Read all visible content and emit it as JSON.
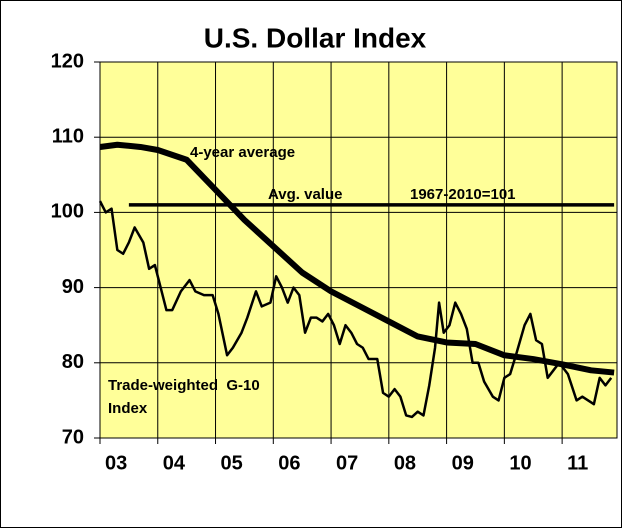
{
  "chart_data": {
    "type": "line",
    "title": "U.S. Dollar Index",
    "xlim": [
      2003,
      2011.95
    ],
    "xticks": [
      {
        "value": 2003,
        "label": "03"
      },
      {
        "value": 2004,
        "label": "04"
      },
      {
        "value": 2005,
        "label": "05"
      },
      {
        "value": 2006,
        "label": "06"
      },
      {
        "value": 2007,
        "label": "07"
      },
      {
        "value": 2008,
        "label": "08"
      },
      {
        "value": 2009,
        "label": "09"
      },
      {
        "value": 2010,
        "label": "10"
      },
      {
        "value": 2011,
        "label": "11"
      }
    ],
    "ylim": [
      70,
      120
    ],
    "yticks": [
      70,
      80,
      90,
      100,
      110,
      120
    ],
    "grid": true,
    "background": "#ffff99",
    "series": [
      {
        "color": "#000000",
        "x": [
          2003.0,
          2003.3,
          2003.7,
          2004.0,
          2004.5,
          2005.0,
          2005.5,
          2006.0,
          2006.5,
          2007.0,
          2007.5,
          2008.0,
          2008.5,
          2009.0,
          2009.5,
          2010.0,
          2010.5,
          2011.0,
          2011.5,
          2011.9
        ],
        "values": [
          108.7,
          109,
          108.7,
          108.3,
          107,
          103,
          99,
          95.5,
          92,
          89.5,
          87.5,
          85.5,
          83.5,
          82.7,
          82.5,
          81,
          80.5,
          79.8,
          79,
          78.7
        ]
      },
      {
        "color": "#000000",
        "x": [
          2003.5,
          2011.9
        ],
        "values": [
          101,
          101
        ]
      },
      {
        "color": "#000000",
        "x": [
          2003.0,
          2003.1,
          2003.2,
          2003.3,
          2003.4,
          2003.5,
          2003.6,
          2003.75,
          2003.85,
          2003.95,
          2004.05,
          2004.15,
          2004.25,
          2004.4,
          2004.55,
          2004.65,
          2004.8,
          2004.95,
          2005.05,
          2005.2,
          2005.3,
          2005.45,
          2005.55,
          2005.7,
          2005.8,
          2005.95,
          2006.05,
          2006.15,
          2006.25,
          2006.35,
          2006.45,
          2006.55,
          2006.65,
          2006.75,
          2006.85,
          2006.95,
          2007.05,
          2007.15,
          2007.25,
          2007.35,
          2007.45,
          2007.55,
          2007.65,
          2007.8,
          2007.9,
          2008.0,
          2008.1,
          2008.2,
          2008.3,
          2008.4,
          2008.5,
          2008.6,
          2008.7,
          2008.8,
          2008.87,
          2008.95,
          2009.05,
          2009.15,
          2009.25,
          2009.35,
          2009.45,
          2009.55,
          2009.65,
          2009.8,
          2009.9,
          2010.0,
          2010.1,
          2010.2,
          2010.35,
          2010.45,
          2010.55,
          2010.65,
          2010.75,
          2010.85,
          2010.95,
          2011.1,
          2011.25,
          2011.35,
          2011.45,
          2011.55,
          2011.65,
          2011.75,
          2011.85
        ],
        "values": [
          101.5,
          100,
          100.5,
          95,
          94.5,
          96,
          98,
          96,
          92.5,
          93,
          90,
          87,
          87,
          89.5,
          91,
          89.5,
          89,
          89,
          86.5,
          81,
          82,
          84,
          86,
          89.5,
          87.5,
          88,
          91.5,
          90,
          88,
          90,
          89,
          84,
          86,
          86,
          85.5,
          86.5,
          85,
          82.5,
          85,
          84,
          82.5,
          82,
          80.5,
          80.5,
          76,
          75.5,
          76.5,
          75.5,
          73,
          72.8,
          73.5,
          73,
          77,
          82,
          88,
          84,
          85,
          88,
          86.5,
          84.5,
          80,
          80,
          77.5,
          75.5,
          75,
          78,
          78.5,
          81,
          85,
          86.5,
          83,
          82.5,
          78,
          79,
          80,
          78.5,
          75,
          75.5,
          75,
          74.5,
          78,
          77,
          78
        ]
      }
    ],
    "annotations": [
      "4-year average",
      "Avg. value",
      "1967-2010=101",
      "Trade-weighted  G-10",
      "Index"
    ]
  }
}
